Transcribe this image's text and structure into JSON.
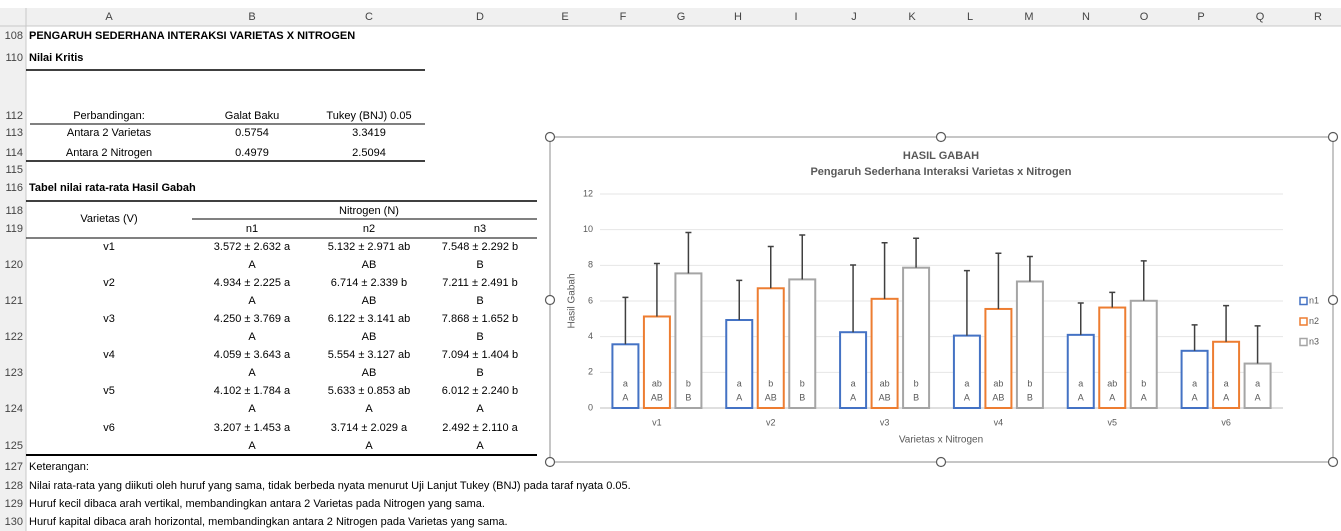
{
  "columns": [
    "A",
    "B",
    "C",
    "D",
    "E",
    "F",
    "G",
    "H",
    "I",
    "J",
    "K",
    "L",
    "M",
    "N",
    "O",
    "P",
    "Q",
    "R"
  ],
  "row_numbers": [
    "108",
    "110",
    "112",
    "113",
    "114",
    "115",
    "116",
    "118",
    "119",
    "120",
    "121",
    "122",
    "123",
    "124",
    "125",
    "127",
    "128",
    "129",
    "130"
  ],
  "title": "PENGARUH SEDERHANA INTERAKSI VARIETAS X NITROGEN",
  "critical": {
    "heading": "Nilai Kritis",
    "headers": [
      "Perbandingan:",
      "Galat Baku",
      "Tukey (BNJ) 0.05"
    ],
    "rows": [
      [
        "Antara 2 Varietas",
        "0.5754",
        "3.3419"
      ],
      [
        "Antara 2 Nitrogen",
        "0.4979",
        "2.5094"
      ]
    ]
  },
  "means": {
    "heading": "Tabel nilai rata-rata Hasil Gabah",
    "row_header": "Varietas (V)",
    "group_header": "Nitrogen (N)",
    "columns": [
      "n1",
      "n2",
      "n3"
    ],
    "rows": [
      {
        "label": "v1",
        "cells": [
          [
            "3.572 ± 2.632 a",
            "A"
          ],
          [
            "5.132 ± 2.971 ab",
            "AB"
          ],
          [
            "7.548 ± 2.292 b",
            "B"
          ]
        ]
      },
      {
        "label": "v2",
        "cells": [
          [
            "4.934 ± 2.225 a",
            "A"
          ],
          [
            "6.714 ± 2.339 b",
            "AB"
          ],
          [
            "7.211 ± 2.491 b",
            "B"
          ]
        ]
      },
      {
        "label": "v3",
        "cells": [
          [
            "4.250 ± 3.769 a",
            "A"
          ],
          [
            "6.122 ± 3.141 ab",
            "AB"
          ],
          [
            "7.868 ± 1.652 b",
            "B"
          ]
        ]
      },
      {
        "label": "v4",
        "cells": [
          [
            "4.059 ± 3.643 a",
            "A"
          ],
          [
            "5.554 ± 3.127 ab",
            "AB"
          ],
          [
            "7.094 ± 1.404 b",
            "B"
          ]
        ]
      },
      {
        "label": "v5",
        "cells": [
          [
            "4.102 ± 1.784 a",
            "A"
          ],
          [
            "5.633 ± 0.853 ab",
            "A"
          ],
          [
            "6.012 ± 2.240 b",
            "A"
          ]
        ]
      },
      {
        "label": "v6",
        "cells": [
          [
            "3.207 ± 1.453 a",
            "A"
          ],
          [
            "3.714 ± 2.029 a",
            "A"
          ],
          [
            "2.492 ± 2.110 a",
            "A"
          ]
        ]
      }
    ]
  },
  "notes": [
    "Keterangan:",
    "Nilai rata-rata yang diikuti oleh huruf yang sama, tidak berbeda nyata menurut Uji Lanjut Tukey (BNJ) pada taraf nyata 0.05.",
    "Huruf kecil dibaca arah vertikal, membandingkan antara 2 Varietas  pada Nitrogen yang sama.",
    "Huruf kapital dibaca arah horizontal, membandingkan antara 2 Nitrogen  pada Varietas yang sama."
  ],
  "chart_data": {
    "type": "bar",
    "title": "HASIL GABAH",
    "subtitle": "Pengaruh Sederhana Interaksi Varietas x Nitrogen",
    "x_label": "Varietas x Nitrogen",
    "y_label": "Hasil Gabah",
    "categories": [
      "v1",
      "v2",
      "v3",
      "v4",
      "v5",
      "v6"
    ],
    "series": [
      {
        "name": "n1",
        "color": "#4472c4",
        "values": [
          3.572,
          4.934,
          4.25,
          4.059,
          4.102,
          3.207
        ],
        "errors": [
          2.632,
          2.225,
          3.769,
          3.643,
          1.784,
          1.453
        ],
        "labels": [
          [
            "a",
            "A"
          ],
          [
            "a",
            "A"
          ],
          [
            "a",
            "A"
          ],
          [
            "a",
            "A"
          ],
          [
            "a",
            "A"
          ],
          [
            "a",
            "A"
          ]
        ]
      },
      {
        "name": "n2",
        "color": "#ed7d31",
        "values": [
          5.132,
          6.714,
          6.122,
          5.554,
          5.633,
          3.714
        ],
        "errors": [
          2.971,
          2.339,
          3.141,
          3.127,
          0.853,
          2.029
        ],
        "labels": [
          [
            "ab",
            "AB"
          ],
          [
            "b",
            "AB"
          ],
          [
            "ab",
            "AB"
          ],
          [
            "ab",
            "AB"
          ],
          [
            "ab",
            "A"
          ],
          [
            "a",
            "A"
          ]
        ]
      },
      {
        "name": "n3",
        "color": "#a5a5a5",
        "values": [
          7.548,
          7.211,
          7.868,
          7.094,
          6.012,
          2.492
        ],
        "errors": [
          2.292,
          2.491,
          1.652,
          1.404,
          2.24,
          2.11
        ],
        "labels": [
          [
            "b",
            "B"
          ],
          [
            "b",
            "B"
          ],
          [
            "b",
            "B"
          ],
          [
            "b",
            "B"
          ],
          [
            "b",
            "A"
          ],
          [
            "a",
            "A"
          ]
        ]
      }
    ],
    "ylim": [
      0,
      12
    ],
    "yticks": [
      0,
      2,
      4,
      6,
      8,
      10,
      12
    ],
    "grid": true,
    "legend": "right"
  }
}
